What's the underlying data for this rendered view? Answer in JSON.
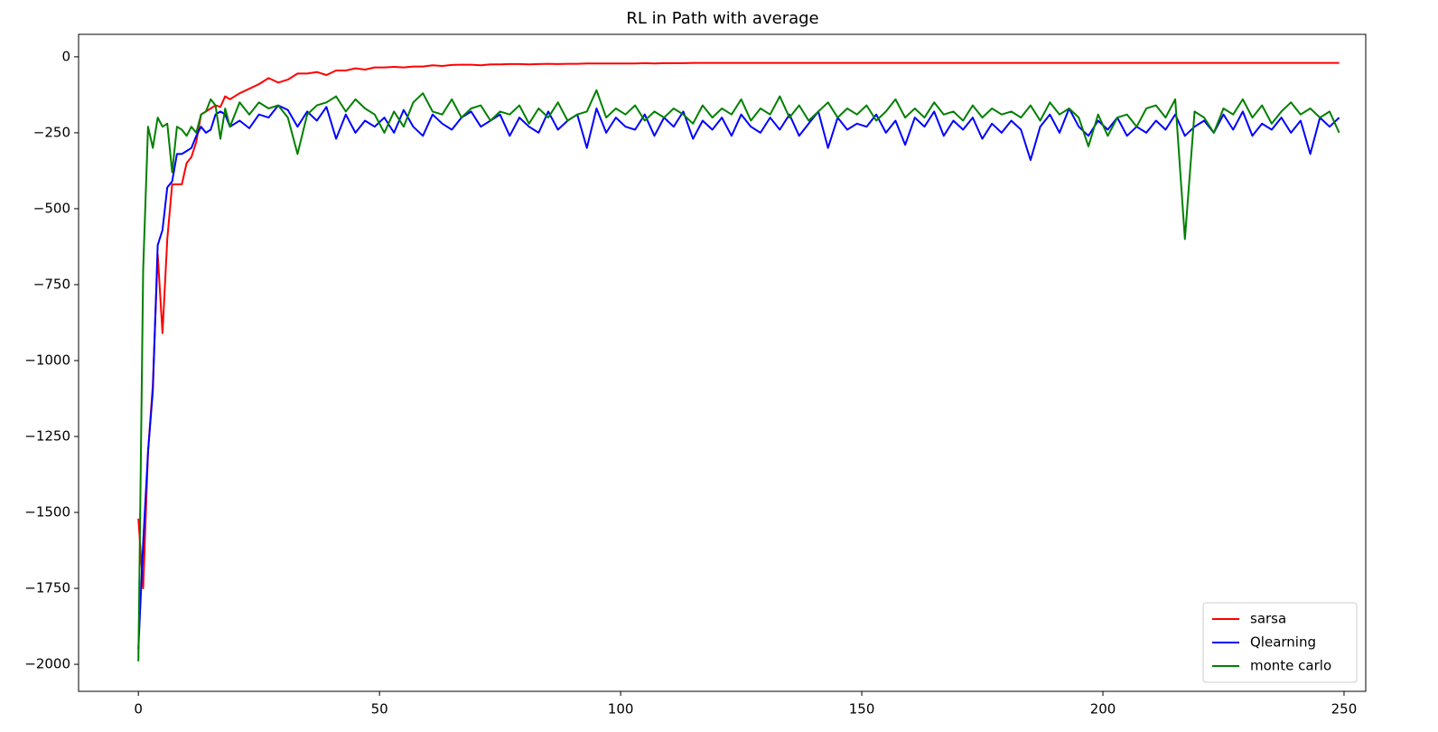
{
  "chart_data": {
    "type": "line",
    "title": "RL in Path with average",
    "x": [
      0,
      1,
      2,
      3,
      4,
      5,
      6,
      7,
      8,
      9,
      10,
      11,
      12,
      13,
      14,
      15,
      16,
      17,
      18,
      19,
      21,
      23,
      25,
      27,
      29,
      31,
      33,
      35,
      37,
      39,
      41,
      43,
      45,
      47,
      49,
      51,
      53,
      55,
      57,
      59,
      61,
      63,
      65,
      67,
      69,
      71,
      73,
      75,
      77,
      79,
      81,
      83,
      85,
      87,
      89,
      91,
      93,
      95,
      97,
      99,
      101,
      103,
      105,
      107,
      109,
      111,
      113,
      115,
      117,
      119,
      121,
      123,
      125,
      127,
      129,
      131,
      133,
      135,
      137,
      139,
      141,
      143,
      145,
      147,
      149,
      151,
      153,
      155,
      157,
      159,
      161,
      163,
      165,
      167,
      169,
      171,
      173,
      175,
      177,
      179,
      181,
      183,
      185,
      187,
      189,
      191,
      193,
      195,
      197,
      199,
      201,
      203,
      205,
      207,
      209,
      211,
      213,
      215,
      217,
      219,
      221,
      223,
      225,
      227,
      229,
      231,
      233,
      235,
      237,
      239,
      241,
      243,
      245,
      247,
      249
    ],
    "series": [
      {
        "name": "sarsa",
        "color": "#ff0000",
        "values": [
          -1520,
          -1750,
          -1300,
          -1080,
          -650,
          -910,
          -600,
          -420,
          -420,
          -420,
          -350,
          -330,
          -280,
          -190,
          -180,
          -170,
          -160,
          -165,
          -130,
          -140,
          -120,
          -105,
          -90,
          -70,
          -85,
          -75,
          -55,
          -55,
          -50,
          -60,
          -45,
          -45,
          -38,
          -42,
          -35,
          -35,
          -33,
          -35,
          -32,
          -32,
          -28,
          -30,
          -27,
          -26,
          -26,
          -28,
          -25,
          -25,
          -24,
          -24,
          -25,
          -24,
          -23,
          -24,
          -23,
          -23,
          -22,
          -22,
          -22,
          -22,
          -22,
          -22,
          -21,
          -22,
          -21,
          -21,
          -21,
          -20,
          -20,
          -20,
          -20,
          -20,
          -20,
          -20,
          -20,
          -20,
          -20,
          -20,
          -20,
          -20,
          -20,
          -20,
          -20,
          -20,
          -20,
          -20,
          -20,
          -20,
          -20,
          -20,
          -20,
          -20,
          -20,
          -20,
          -20,
          -20,
          -20,
          -20,
          -20,
          -20,
          -20,
          -20,
          -20,
          -20,
          -20,
          -20,
          -20,
          -20,
          -20,
          -20,
          -20,
          -20,
          -20,
          -20,
          -20,
          -20,
          -20,
          -20,
          -20,
          -20,
          -20,
          -20,
          -20,
          -20,
          -20,
          -20,
          -20,
          -20,
          -20,
          -20,
          -20,
          -20,
          -20,
          -20,
          -20
        ]
      },
      {
        "name": "Qlearning",
        "color": "#0000ff",
        "values": [
          -1950,
          -1600,
          -1300,
          -1100,
          -620,
          -570,
          -430,
          -410,
          -320,
          -320,
          -310,
          -300,
          -260,
          -230,
          -250,
          -240,
          -190,
          -180,
          -190,
          -230,
          -210,
          -235,
          -190,
          -200,
          -160,
          -175,
          -230,
          -180,
          -210,
          -165,
          -270,
          -190,
          -250,
          -210,
          -230,
          -200,
          -250,
          -175,
          -230,
          -260,
          -190,
          -220,
          -240,
          -200,
          -180,
          -230,
          -210,
          -190,
          -260,
          -200,
          -230,
          -250,
          -180,
          -240,
          -210,
          -190,
          -300,
          -170,
          -250,
          -200,
          -230,
          -240,
          -190,
          -260,
          -200,
          -230,
          -180,
          -270,
          -210,
          -240,
          -200,
          -260,
          -190,
          -230,
          -250,
          -200,
          -240,
          -190,
          -260,
          -220,
          -180,
          -300,
          -200,
          -240,
          -220,
          -230,
          -190,
          -250,
          -210,
          -290,
          -200,
          -230,
          -180,
          -260,
          -210,
          -240,
          -200,
          -270,
          -220,
          -250,
          -210,
          -240,
          -340,
          -230,
          -190,
          -250,
          -170,
          -230,
          -260,
          -210,
          -240,
          -200,
          -260,
          -230,
          -250,
          -210,
          -240,
          -190,
          -260,
          -230,
          -210,
          -250,
          -190,
          -240,
          -180,
          -260,
          -220,
          -240,
          -200,
          -250,
          -210,
          -320,
          -200,
          -230,
          -200
        ]
      },
      {
        "name": "monte carlo",
        "color": "#008000",
        "values": [
          -1990,
          -700,
          -230,
          -300,
          -200,
          -230,
          -220,
          -380,
          -230,
          -240,
          -260,
          -230,
          -250,
          -190,
          -180,
          -140,
          -160,
          -270,
          -170,
          -230,
          -150,
          -190,
          -150,
          -170,
          -160,
          -200,
          -320,
          -190,
          -160,
          -150,
          -130,
          -180,
          -140,
          -170,
          -190,
          -250,
          -180,
          -230,
          -150,
          -120,
          -180,
          -190,
          -140,
          -200,
          -170,
          -160,
          -210,
          -180,
          -190,
          -160,
          -220,
          -170,
          -200,
          -150,
          -210,
          -190,
          -180,
          -110,
          -200,
          -170,
          -190,
          -160,
          -210,
          -180,
          -200,
          -170,
          -190,
          -220,
          -160,
          -200,
          -170,
          -190,
          -140,
          -210,
          -170,
          -190,
          -130,
          -200,
          -160,
          -210,
          -180,
          -150,
          -200,
          -170,
          -190,
          -160,
          -210,
          -180,
          -140,
          -200,
          -170,
          -200,
          -150,
          -190,
          -180,
          -210,
          -160,
          -200,
          -170,
          -190,
          -180,
          -200,
          -160,
          -210,
          -150,
          -190,
          -170,
          -200,
          -295,
          -190,
          -260,
          -200,
          -190,
          -230,
          -170,
          -160,
          -200,
          -140,
          -600,
          -180,
          -200,
          -250,
          -170,
          -190,
          -140,
          -200,
          -160,
          -220,
          -180,
          -150,
          -190,
          -170,
          -200,
          -180,
          -250
        ]
      }
    ],
    "xlim": [
      -12.4,
      254.5
    ],
    "ylim": [
      -2089,
      74
    ],
    "xticks": [
      0,
      50,
      100,
      150,
      200,
      250
    ],
    "yticks": [
      0,
      {
        "value": -250,
        "label": "−250"
      },
      {
        "value": -500,
        "label": "−500"
      },
      {
        "value": -750,
        "label": "−750"
      },
      {
        "value": -1000,
        "label": "−1000"
      },
      {
        "value": -1250,
        "label": "−1250"
      },
      {
        "value": -1500,
        "label": "−1500"
      },
      {
        "value": -1750,
        "label": "−1750"
      },
      {
        "value": -2000,
        "label": "−2000"
      }
    ],
    "legend": "lower right"
  }
}
